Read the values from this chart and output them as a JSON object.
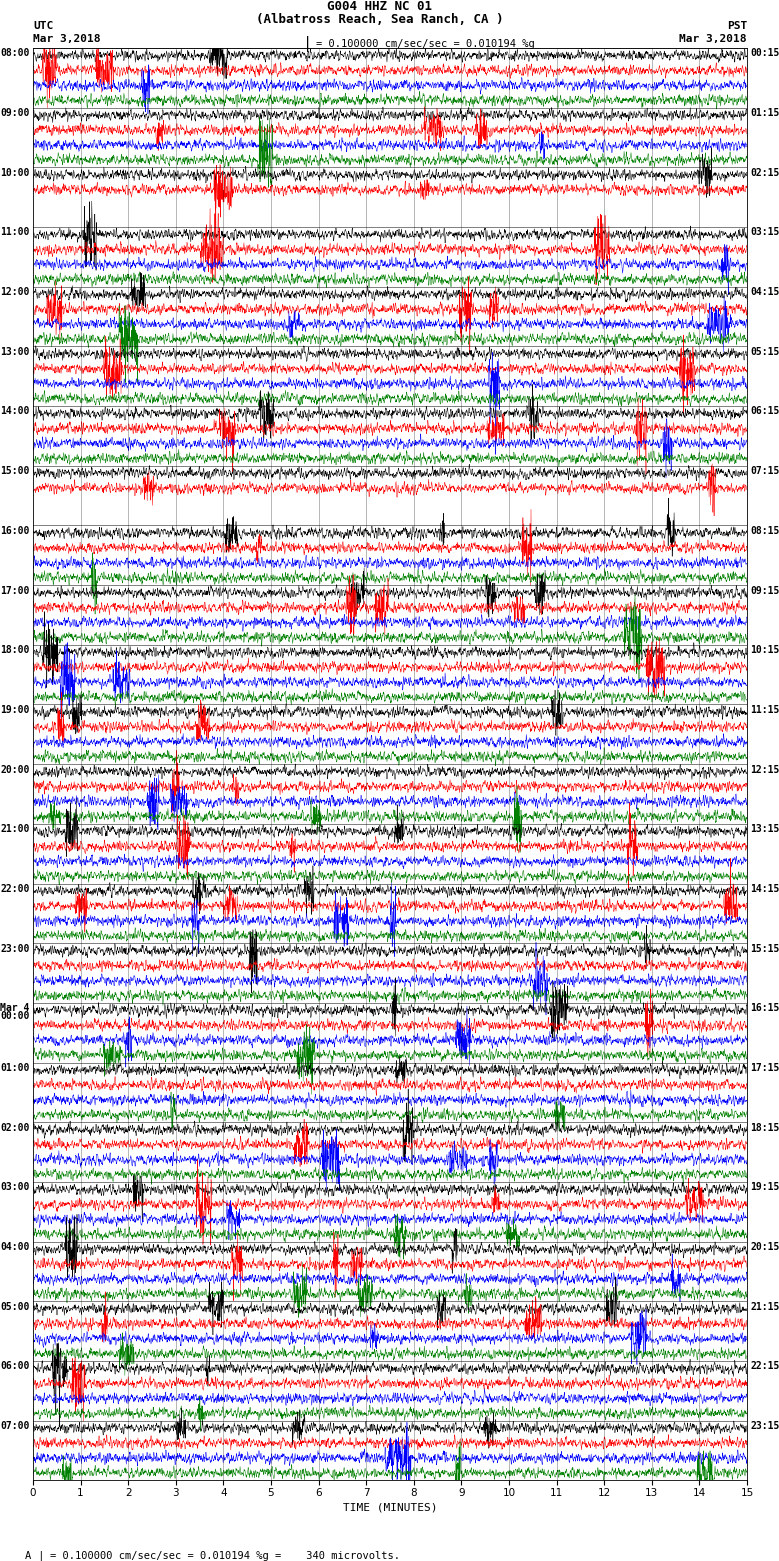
{
  "title_line1": "G004 HHZ NC 01",
  "title_line2": "(Albatross Reach, Sea Ranch, CA )",
  "scale_bar_text": "= 0.100000 cm/sec/sec = 0.010194 %g",
  "footer_text": "= 0.100000 cm/sec/sec = 0.010194 %g =    340 microvolts.",
  "xlabel": "TIME (MINUTES)",
  "xlim": [
    0,
    15
  ],
  "xticks": [
    0,
    1,
    2,
    3,
    4,
    5,
    6,
    7,
    8,
    9,
    10,
    11,
    12,
    13,
    14,
    15
  ],
  "time_minutes": 15,
  "bg_color": "#ffffff",
  "colors": [
    "black",
    "red",
    "blue",
    "green"
  ],
  "noise_seed": 42,
  "line_amplitude": 0.28,
  "row_rows": [
    {
      "label": "08:00",
      "has_data": [
        1,
        1,
        1,
        1
      ]
    },
    {
      "label": "09:00",
      "has_data": [
        1,
        1,
        1,
        1
      ]
    },
    {
      "label": "10:00",
      "has_data": [
        1,
        1,
        0,
        0
      ]
    },
    {
      "label": "11:00",
      "has_data": [
        1,
        1,
        1,
        1
      ]
    },
    {
      "label": "12:00",
      "has_data": [
        1,
        1,
        1,
        1
      ]
    },
    {
      "label": "13:00",
      "has_data": [
        1,
        1,
        1,
        1
      ]
    },
    {
      "label": "14:00",
      "has_data": [
        1,
        1,
        1,
        1
      ]
    },
    {
      "label": "15:00",
      "has_data": [
        1,
        1,
        0,
        0
      ]
    },
    {
      "label": "16:00",
      "has_data": [
        1,
        1,
        1,
        1
      ]
    },
    {
      "label": "17:00",
      "has_data": [
        1,
        1,
        1,
        1
      ]
    },
    {
      "label": "18:00",
      "has_data": [
        1,
        1,
        1,
        1
      ]
    },
    {
      "label": "19:00",
      "has_data": [
        1,
        1,
        1,
        1
      ]
    },
    {
      "label": "20:00",
      "has_data": [
        1,
        1,
        1,
        1
      ]
    },
    {
      "label": "21:00",
      "has_data": [
        1,
        1,
        1,
        1
      ]
    },
    {
      "label": "22:00",
      "has_data": [
        1,
        1,
        1,
        1
      ]
    },
    {
      "label": "23:00",
      "has_data": [
        1,
        1,
        1,
        1
      ]
    },
    {
      "label": "Mar 4\n00:00",
      "has_data": [
        1,
        1,
        1,
        1
      ]
    },
    {
      "label": "01:00",
      "has_data": [
        1,
        1,
        1,
        1
      ]
    },
    {
      "label": "02:00",
      "has_data": [
        1,
        1,
        1,
        1
      ]
    },
    {
      "label": "03:00",
      "has_data": [
        1,
        1,
        1,
        1
      ]
    },
    {
      "label": "04:00",
      "has_data": [
        1,
        1,
        1,
        1
      ]
    },
    {
      "label": "05:00",
      "has_data": [
        1,
        1,
        1,
        1
      ]
    },
    {
      "label": "06:00",
      "has_data": [
        1,
        1,
        1,
        1
      ]
    },
    {
      "label": "07:00",
      "has_data": [
        1,
        1,
        1,
        1
      ]
    }
  ],
  "right_times_pst": [
    "00:15",
    "01:15",
    "02:15",
    "03:15",
    "04:15",
    "05:15",
    "06:15",
    "07:15",
    "08:15",
    "09:15",
    "10:15",
    "11:15",
    "12:15",
    "13:15",
    "14:15",
    "15:15",
    "16:15",
    "17:15",
    "18:15",
    "19:15",
    "20:15",
    "21:15",
    "22:15",
    "23:15"
  ]
}
